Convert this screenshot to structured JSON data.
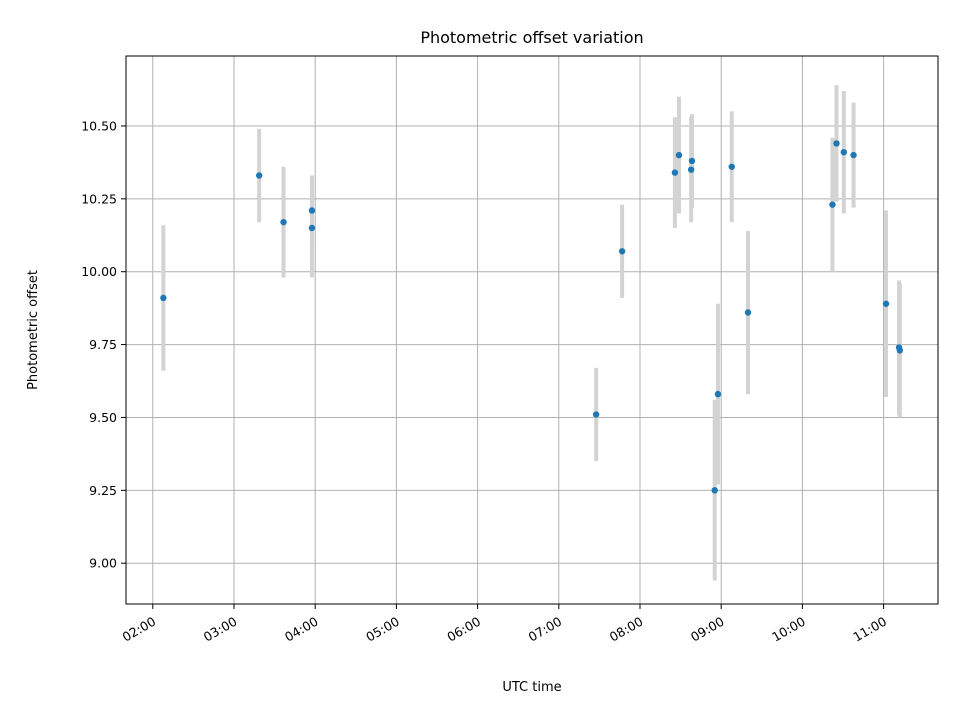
{
  "chart_data": {
    "type": "scatter",
    "title": "Photometric offset variation",
    "xlabel": "UTC time",
    "ylabel": "Photometric offset",
    "x_unit": "hours UTC",
    "xlim": [
      1.67,
      11.67
    ],
    "ylim": [
      8.86,
      10.74
    ],
    "x_ticks": [
      {
        "value": 2,
        "label": "02:00"
      },
      {
        "value": 3,
        "label": "03:00"
      },
      {
        "value": 4,
        "label": "04:00"
      },
      {
        "value": 5,
        "label": "05:00"
      },
      {
        "value": 6,
        "label": "06:00"
      },
      {
        "value": 7,
        "label": "07:00"
      },
      {
        "value": 8,
        "label": "08:00"
      },
      {
        "value": 9,
        "label": "09:00"
      },
      {
        "value": 10,
        "label": "10:00"
      },
      {
        "value": 11,
        "label": "11:00"
      }
    ],
    "y_ticks": [
      {
        "value": 9.0,
        "label": "9.00"
      },
      {
        "value": 9.25,
        "label": "9.25"
      },
      {
        "value": 9.5,
        "label": "9.50"
      },
      {
        "value": 9.75,
        "label": "9.75"
      },
      {
        "value": 10.0,
        "label": "10.00"
      },
      {
        "value": 10.25,
        "label": "10.25"
      },
      {
        "value": 10.5,
        "label": "10.50"
      }
    ],
    "grid": true,
    "marker_color": "#1f77b4",
    "errorbar_color": "#d3d3d3",
    "points": [
      {
        "x": 2.13,
        "y": 9.91,
        "err": 0.25
      },
      {
        "x": 3.31,
        "y": 10.33,
        "err": 0.16
      },
      {
        "x": 3.61,
        "y": 10.17,
        "err": 0.19
      },
      {
        "x": 3.96,
        "y": 10.21,
        "err": 0.12
      },
      {
        "x": 3.96,
        "y": 10.15,
        "err": 0.17
      },
      {
        "x": 7.46,
        "y": 9.51,
        "err": 0.16
      },
      {
        "x": 7.78,
        "y": 10.07,
        "err": 0.16
      },
      {
        "x": 8.43,
        "y": 10.34,
        "err": 0.19
      },
      {
        "x": 8.48,
        "y": 10.4,
        "err": 0.2
      },
      {
        "x": 8.63,
        "y": 10.35,
        "err": 0.18
      },
      {
        "x": 8.64,
        "y": 10.38,
        "err": 0.16
      },
      {
        "x": 8.92,
        "y": 9.25,
        "err": 0.31
      },
      {
        "x": 8.96,
        "y": 9.58,
        "err": 0.31
      },
      {
        "x": 9.13,
        "y": 10.36,
        "err": 0.19
      },
      {
        "x": 9.33,
        "y": 9.86,
        "err": 0.28
      },
      {
        "x": 10.37,
        "y": 10.23,
        "err": 0.23
      },
      {
        "x": 10.42,
        "y": 10.44,
        "err": 0.2
      },
      {
        "x": 10.51,
        "y": 10.41,
        "err": 0.21
      },
      {
        "x": 10.63,
        "y": 10.4,
        "err": 0.18
      },
      {
        "x": 11.03,
        "y": 9.89,
        "err": 0.32
      },
      {
        "x": 11.19,
        "y": 9.74,
        "err": 0.23
      },
      {
        "x": 11.2,
        "y": 9.73,
        "err": 0.23
      }
    ]
  }
}
